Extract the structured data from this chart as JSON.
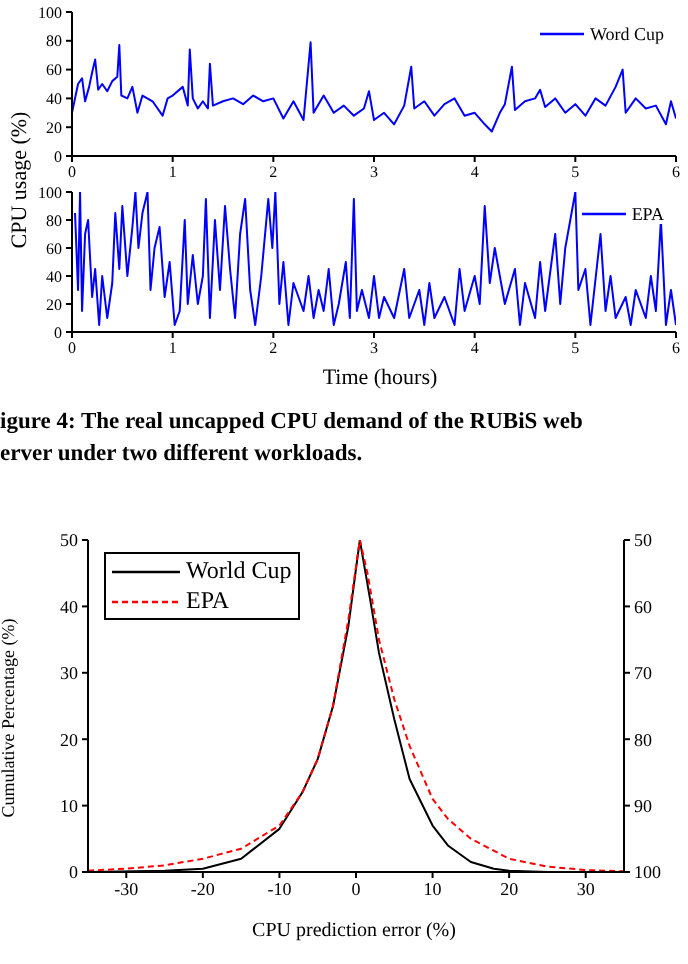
{
  "chart_data": [
    {
      "type": "line",
      "ylabel": "CPU usage (%)",
      "xlim": [
        0,
        6
      ],
      "xticks": [
        0,
        1,
        2,
        3,
        4,
        5,
        6
      ],
      "ylim": [
        0,
        100
      ],
      "yticks": [
        0,
        20,
        40,
        60,
        80,
        100
      ],
      "legend": "top right",
      "series": [
        {
          "name": "Word Cup",
          "color": "#0000ff",
          "x": [
            0,
            0.03,
            0.06,
            0.1,
            0.13,
            0.17,
            0.2,
            0.23,
            0.26,
            0.3,
            0.35,
            0.4,
            0.45,
            0.47,
            0.49,
            0.55,
            0.6,
            0.65,
            0.7,
            0.8,
            0.9,
            0.95,
            1.0,
            1.1,
            1.15,
            1.17,
            1.2,
            1.25,
            1.3,
            1.35,
            1.37,
            1.4,
            1.5,
            1.6,
            1.7,
            1.8,
            1.9,
            2.0,
            2.1,
            2.2,
            2.3,
            2.37,
            2.4,
            2.5,
            2.6,
            2.7,
            2.8,
            2.9,
            2.95,
            3.0,
            3.1,
            3.2,
            3.3,
            3.37,
            3.4,
            3.5,
            3.6,
            3.7,
            3.8,
            3.9,
            4.0,
            4.1,
            4.17,
            4.25,
            4.3,
            4.37,
            4.4,
            4.5,
            4.6,
            4.65,
            4.7,
            4.8,
            4.9,
            5.0,
            5.1,
            5.2,
            5.3,
            5.4,
            5.47,
            5.5,
            5.6,
            5.7,
            5.8,
            5.9,
            5.95,
            6.0
          ],
          "values": [
            30,
            40,
            50,
            54,
            38,
            48,
            58,
            67,
            46,
            50,
            45,
            52,
            55,
            77,
            42,
            40,
            48,
            30,
            42,
            38,
            28,
            40,
            42,
            48,
            35,
            74,
            40,
            33,
            38,
            33,
            64,
            35,
            38,
            40,
            36,
            42,
            38,
            40,
            26,
            38,
            25,
            79,
            30,
            42,
            30,
            35,
            28,
            33,
            45,
            25,
            30,
            22,
            35,
            62,
            33,
            38,
            28,
            36,
            40,
            28,
            30,
            22,
            17,
            30,
            36,
            62,
            32,
            38,
            40,
            46,
            34,
            40,
            30,
            36,
            28,
            40,
            35,
            48,
            60,
            30,
            40,
            33,
            35,
            22,
            38,
            26
          ]
        }
      ]
    },
    {
      "type": "line",
      "xlabel": "Time (hours)",
      "xlim": [
        0,
        6
      ],
      "xticks": [
        0,
        1,
        2,
        3,
        4,
        5,
        6
      ],
      "ylim": [
        0,
        100
      ],
      "yticks": [
        0,
        20,
        40,
        60,
        80,
        100
      ],
      "legend": "top right",
      "annotations": [
        "igure 4: The real uncapped CPU demand of the RUBiS web",
        "erver under two different workloads."
      ],
      "series": [
        {
          "name": "EPA",
          "color": "#0000ff",
          "x": [
            0.03,
            0.06,
            0.08,
            0.1,
            0.13,
            0.16,
            0.2,
            0.23,
            0.27,
            0.3,
            0.35,
            0.4,
            0.43,
            0.47,
            0.5,
            0.55,
            0.6,
            0.63,
            0.66,
            0.7,
            0.75,
            0.78,
            0.82,
            0.87,
            0.92,
            0.97,
            1.02,
            1.07,
            1.12,
            1.15,
            1.2,
            1.25,
            1.3,
            1.33,
            1.37,
            1.42,
            1.47,
            1.52,
            1.57,
            1.62,
            1.67,
            1.72,
            1.77,
            1.82,
            1.88,
            1.95,
            1.99,
            2.02,
            2.06,
            2.1,
            2.15,
            2.2,
            2.3,
            2.35,
            2.4,
            2.45,
            2.5,
            2.55,
            2.6,
            2.65,
            2.72,
            2.76,
            2.8,
            2.83,
            2.88,
            2.95,
            3.0,
            3.05,
            3.1,
            3.2,
            3.3,
            3.35,
            3.45,
            3.5,
            3.55,
            3.6,
            3.7,
            3.8,
            3.85,
            3.9,
            4.0,
            4.05,
            4.1,
            4.15,
            4.2,
            4.3,
            4.4,
            4.45,
            4.5,
            4.6,
            4.65,
            4.7,
            4.8,
            4.85,
            4.9,
            4.95,
            5.0,
            5.03,
            5.1,
            5.15,
            5.25,
            5.3,
            5.35,
            5.4,
            5.5,
            5.55,
            5.6,
            5.7,
            5.75,
            5.8,
            5.85,
            5.9,
            5.95,
            6.0
          ],
          "values": [
            85,
            30,
            100,
            15,
            70,
            80,
            25,
            45,
            5,
            40,
            10,
            35,
            85,
            45,
            90,
            40,
            75,
            100,
            60,
            85,
            100,
            30,
            60,
            75,
            25,
            50,
            5,
            15,
            80,
            20,
            55,
            20,
            40,
            95,
            10,
            80,
            30,
            90,
            45,
            10,
            70,
            95,
            30,
            5,
            40,
            95,
            60,
            100,
            20,
            50,
            5,
            35,
            15,
            40,
            10,
            30,
            15,
            45,
            5,
            20,
            50,
            10,
            95,
            15,
            30,
            10,
            40,
            10,
            25,
            10,
            45,
            10,
            30,
            5,
            35,
            10,
            25,
            5,
            45,
            15,
            40,
            20,
            90,
            35,
            60,
            20,
            45,
            5,
            35,
            10,
            50,
            15,
            70,
            20,
            60,
            80,
            100,
            30,
            45,
            5,
            70,
            15,
            40,
            10,
            25,
            5,
            30,
            10,
            40,
            15,
            80,
            5,
            30,
            5
          ]
        }
      ]
    },
    {
      "type": "line",
      "xlabel": "CPU prediction error (%)",
      "ylabel": "Cumulative Percentage (%)",
      "xlim": [
        -35,
        35
      ],
      "xticks": [
        -30,
        -20,
        -10,
        0,
        10,
        20,
        30
      ],
      "ylim": [
        0,
        50
      ],
      "yticks": [
        0,
        10,
        20,
        30,
        40,
        50
      ],
      "y2lim": [
        100,
        50
      ],
      "y2ticks": [
        50,
        60,
        70,
        80,
        90,
        100
      ],
      "legend": "top left",
      "series": [
        {
          "name": "World Cup",
          "color": "#000000",
          "line_style": "solid",
          "x": [
            -35,
            -25,
            -20,
            -15,
            -10,
            -7,
            -5,
            -3,
            -1,
            0.5,
            2,
            3,
            5,
            7,
            10,
            12,
            15,
            18,
            20,
            25,
            35
          ],
          "values": [
            0,
            0.2,
            0.5,
            2,
            6.5,
            12,
            17,
            25,
            37,
            50,
            40,
            33,
            23,
            14,
            7,
            4,
            1.5,
            0.5,
            0.2,
            0,
            0
          ]
        },
        {
          "name": "EPA",
          "color": "#ff0000",
          "line_style": "dashed",
          "x": [
            -35,
            -30,
            -25,
            -20,
            -15,
            -10,
            -7,
            -5,
            -3,
            -1,
            0.5,
            1.5,
            3,
            5,
            7,
            10,
            12,
            15,
            20,
            25,
            30,
            35
          ],
          "values": [
            0.2,
            0.5,
            1,
            2,
            3.5,
            7,
            12,
            17,
            25,
            38,
            50,
            45,
            35,
            26,
            19,
            11,
            8,
            5,
            2,
            0.8,
            0.3,
            0.1
          ]
        }
      ]
    }
  ]
}
